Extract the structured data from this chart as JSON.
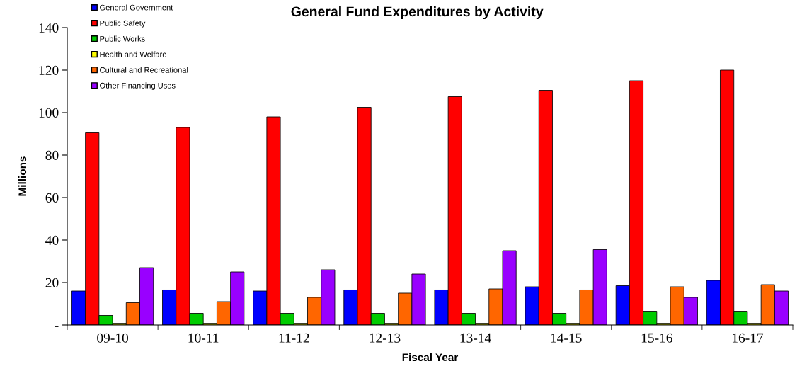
{
  "chart_data": {
    "type": "bar",
    "title": "General Fund Expenditures by Activity",
    "xlabel": "Fiscal Year",
    "ylabel": "Millions",
    "categories": [
      "09-10",
      "10-11",
      "11-12",
      "12-13",
      "13-14",
      "14-15",
      "15-16",
      "16-17"
    ],
    "series": [
      {
        "name": "General Government",
        "color": "#0000ff",
        "values": [
          16,
          16.5,
          16,
          16.5,
          16.5,
          18,
          18.5,
          21
        ]
      },
      {
        "name": "Public Safety",
        "color": "#ff0000",
        "values": [
          90.5,
          93,
          98,
          102.5,
          107.5,
          110.5,
          115,
          120
        ]
      },
      {
        "name": "Public Works",
        "color": "#00cc00",
        "values": [
          4.5,
          5.5,
          5.5,
          5.5,
          5.5,
          5.5,
          6.5,
          6.5
        ]
      },
      {
        "name": "Health and Welfare",
        "color": "#ffff00",
        "values": [
          0.8,
          0.8,
          0.8,
          0.8,
          0.8,
          0.8,
          0.8,
          0.8
        ]
      },
      {
        "name": "Cultural and Recreational",
        "color": "#ff6600",
        "values": [
          10.5,
          11,
          13,
          15,
          17,
          16.5,
          18,
          19
        ]
      },
      {
        "name": "Other Financing Uses",
        "color": "#9900ff",
        "values": [
          27,
          25,
          26,
          24,
          35,
          35.5,
          13,
          16
        ]
      }
    ],
    "ylim": [
      0,
      140
    ],
    "yticks": [
      {
        "value": 0,
        "label": "-"
      },
      20,
      40,
      60,
      80,
      100,
      120,
      140
    ],
    "grid": false,
    "legend": "top left"
  }
}
